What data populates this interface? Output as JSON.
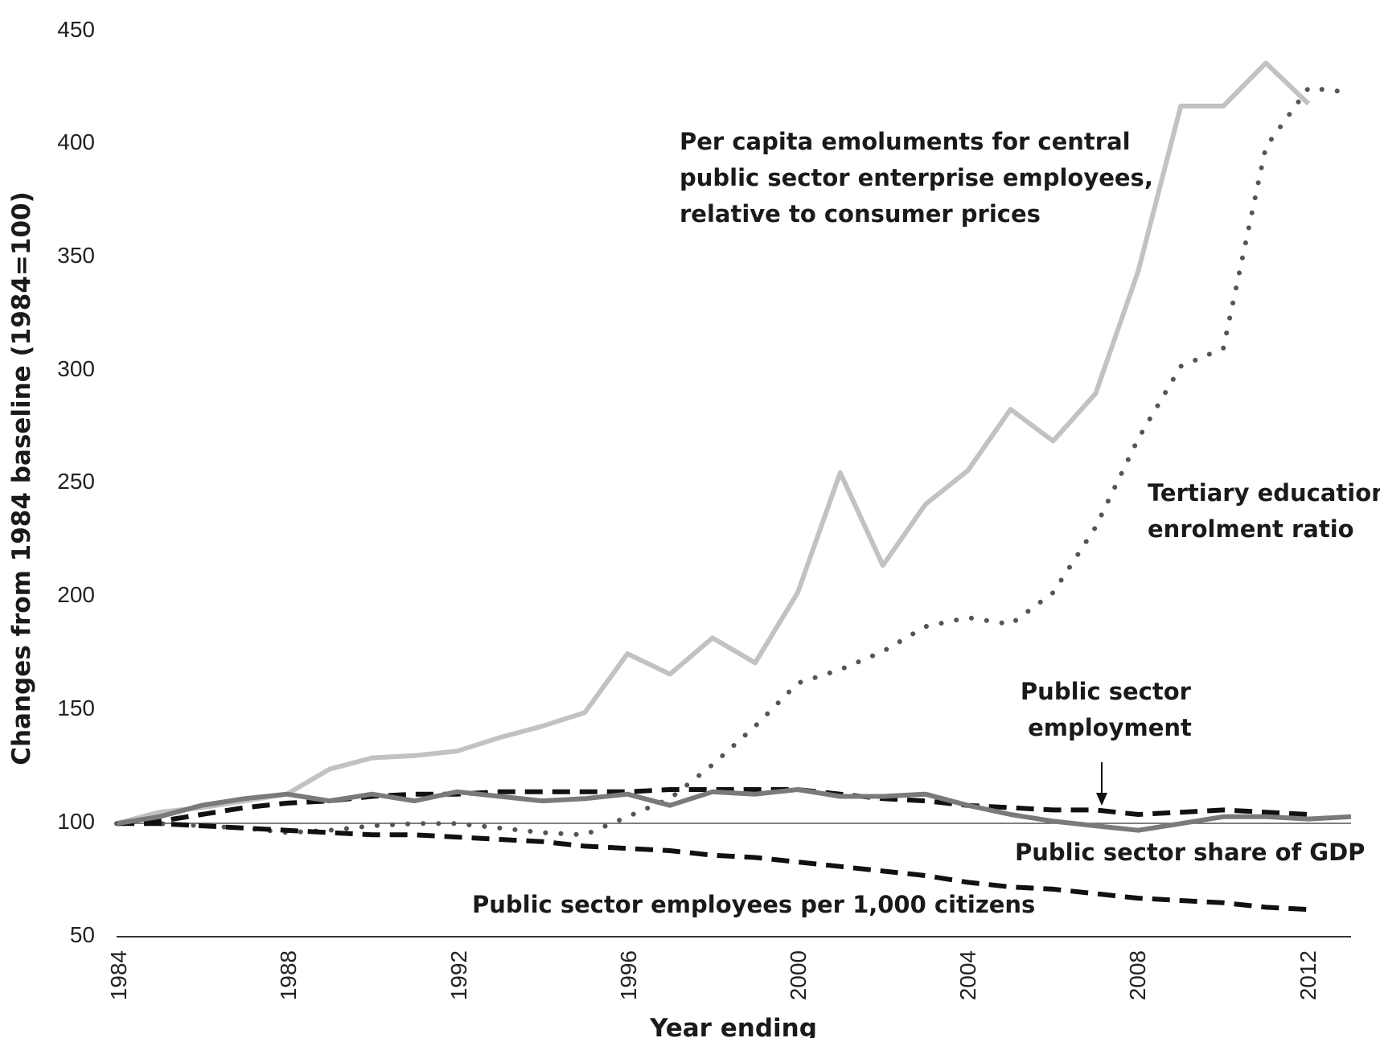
{
  "chart_data": {
    "type": "line",
    "title": "",
    "xlabel": "Year ending",
    "ylabel": "Changes from 1984 baseline (1984=100)",
    "xlim": [
      1984,
      2013
    ],
    "ylim": [
      50,
      450
    ],
    "x_ticks": [
      "1984",
      "1988",
      "1992",
      "1996",
      "2000",
      "2004",
      "2008",
      "2012"
    ],
    "y_ticks": [
      "50",
      "100",
      "150",
      "200",
      "250",
      "300",
      "350",
      "400",
      "450"
    ],
    "baseline": 100,
    "grid": false,
    "legend": "none (series labelled directly on the chart)",
    "x": [
      1984,
      1985,
      1986,
      1987,
      1988,
      1989,
      1990,
      1991,
      1992,
      1993,
      1994,
      1995,
      1996,
      1997,
      1998,
      1999,
      2000,
      2001,
      2002,
      2003,
      2004,
      2005,
      2006,
      2007,
      2008,
      2009,
      2010,
      2011,
      2012,
      2013
    ],
    "series": [
      {
        "name": "Per capita emoluments for central public sector enterprise employees, relative to consumer prices",
        "style": "solid-light",
        "color": "#c2c2c2",
        "values": [
          100,
          105,
          107,
          110,
          113,
          124,
          129,
          130,
          132,
          138,
          143,
          149,
          175,
          166,
          182,
          171,
          202,
          255,
          214,
          241,
          256,
          283,
          269,
          290,
          344,
          417,
          417,
          436,
          418,
          null
        ]
      },
      {
        "name": "Tertiary education enrolment ratio",
        "style": "dotted",
        "color": "#555555",
        "values": [
          100,
          100,
          99,
          98,
          96,
          97,
          99,
          100,
          100,
          98,
          96,
          95,
          103,
          111,
          126,
          143,
          162,
          168,
          176,
          187,
          191,
          188,
          202,
          231,
          270,
          302,
          310,
          399,
          425,
          423
        ]
      },
      {
        "name": "Public sector employment",
        "style": "solid-dark",
        "color": "#7a7a7a",
        "values": [
          100,
          103,
          108,
          111,
          113,
          110,
          113,
          110,
          114,
          112,
          110,
          111,
          113,
          108,
          114,
          113,
          115,
          112,
          112,
          113,
          108,
          104,
          101,
          99,
          97,
          100,
          103,
          103,
          102,
          103
        ]
      },
      {
        "name": "Public sector share of GDP",
        "style": "dashed",
        "color": "#111111",
        "values": [
          100,
          101,
          104,
          107,
          109,
          110,
          112,
          113,
          113,
          114,
          114,
          114,
          114,
          115,
          115,
          115,
          115,
          113,
          111,
          110,
          108,
          107,
          106,
          106,
          104,
          105,
          106,
          105,
          104,
          null
        ]
      },
      {
        "name": "Public sector employees per 1,000 citizens",
        "style": "dashed",
        "color": "#111111",
        "values": [
          100,
          100,
          99,
          98,
          97,
          96,
          95,
          95,
          94,
          93,
          92,
          90,
          89,
          88,
          86,
          85,
          83,
          81,
          79,
          77,
          74,
          72,
          71,
          69,
          67,
          66,
          65,
          63,
          62,
          null
        ]
      }
    ],
    "annotations": {
      "emoluments_lines": [
        "Per capita emoluments for central",
        "public sector enterprise employees,",
        "relative to consumer prices"
      ],
      "tertiary_lines": [
        "Tertiary education",
        "enrolment ratio"
      ],
      "employment_lines": [
        "Public sector",
        "employment"
      ],
      "gdp_label": "Public sector share of GDP",
      "per1000_label": "Public sector employees per 1,000 citizens"
    }
  }
}
